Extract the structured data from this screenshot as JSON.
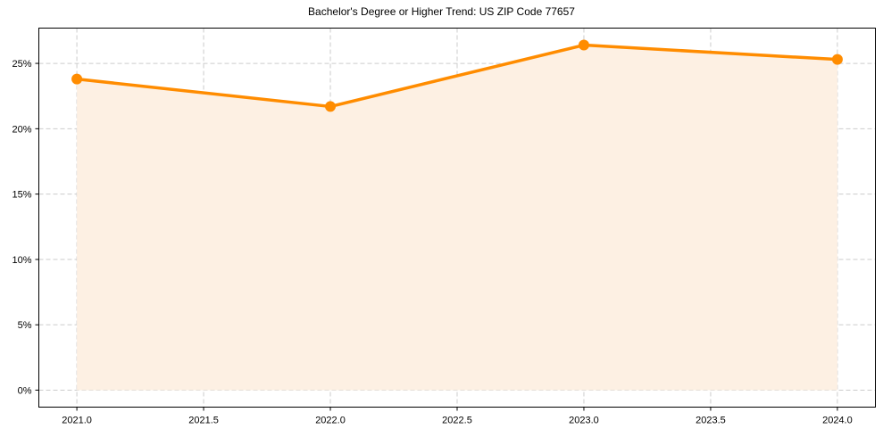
{
  "chart_data": {
    "type": "line",
    "title": "Bachelor's Degree or Higher Trend: US ZIP Code 77657",
    "xlabel": "",
    "ylabel": "",
    "x": [
      2021,
      2022,
      2023,
      2024
    ],
    "series": [
      {
        "name": "Bachelor's Degree or Higher",
        "values": [
          23.8,
          21.7,
          26.4,
          25.3
        ],
        "color": "#ff8c00",
        "fill": "#fdf0e3"
      }
    ],
    "xticks": [
      "2021.0",
      "2021.5",
      "2022.0",
      "2022.5",
      "2023.0",
      "2023.5",
      "2024.0"
    ],
    "xtick_values": [
      2021.0,
      2021.5,
      2022.0,
      2022.5,
      2023.0,
      2023.5,
      2024.0
    ],
    "yticks": [
      "0%",
      "5%",
      "10%",
      "15%",
      "20%",
      "25%"
    ],
    "ytick_values": [
      0,
      5,
      10,
      15,
      20,
      25
    ],
    "xlim": [
      2020.85,
      2024.15
    ],
    "ylim": [
      -1.3,
      27.7
    ],
    "grid": true,
    "legend": "none"
  }
}
